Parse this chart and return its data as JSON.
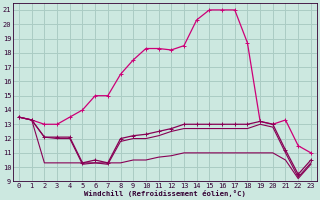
{
  "xlabel": "Windchill (Refroidissement éolien,°C)",
  "xlim": [
    -0.5,
    23.5
  ],
  "ylim": [
    9,
    21.5
  ],
  "yticks": [
    9,
    10,
    11,
    12,
    13,
    14,
    15,
    16,
    17,
    18,
    19,
    20,
    21
  ],
  "xticks": [
    0,
    1,
    2,
    3,
    4,
    5,
    6,
    7,
    8,
    9,
    10,
    11,
    12,
    13,
    14,
    15,
    16,
    17,
    18,
    19,
    20,
    21,
    22,
    23
  ],
  "bg_color": "#cce8e0",
  "grid_color": "#aaccc4",
  "line_bright": "#cc0077",
  "line_dark": "#880055",
  "curve_main": [
    13.5,
    13.3,
    13.0,
    13.0,
    13.5,
    14.0,
    15.0,
    15.0,
    16.5,
    17.5,
    18.3,
    18.3,
    18.2,
    18.5,
    20.3,
    21.0,
    21.0,
    21.0,
    18.7,
    13.2,
    13.0,
    13.3,
    11.5,
    11.0
  ],
  "curve_wc1": [
    13.5,
    13.3,
    12.1,
    12.1,
    12.1,
    10.3,
    10.5,
    10.3,
    12.0,
    12.2,
    12.3,
    12.5,
    12.7,
    13.0,
    13.0,
    13.0,
    13.0,
    13.0,
    13.0,
    13.2,
    13.0,
    11.2,
    9.5,
    10.5
  ],
  "curve_wc2": [
    13.5,
    13.3,
    12.1,
    12.0,
    12.0,
    10.2,
    10.3,
    10.2,
    11.8,
    12.0,
    12.0,
    12.2,
    12.5,
    12.7,
    12.7,
    12.7,
    12.7,
    12.7,
    12.7,
    13.0,
    12.8,
    11.0,
    9.3,
    10.3
  ],
  "curve_wc3": [
    13.5,
    13.3,
    10.3,
    10.3,
    10.3,
    10.3,
    10.3,
    10.3,
    10.3,
    10.5,
    10.5,
    10.7,
    10.8,
    11.0,
    11.0,
    11.0,
    11.0,
    11.0,
    11.0,
    11.0,
    11.0,
    10.5,
    9.2,
    10.2
  ]
}
